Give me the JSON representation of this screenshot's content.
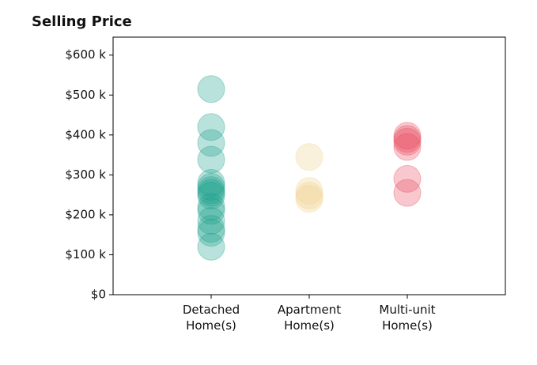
{
  "chart_data": {
    "type": "strip",
    "title": "Selling Price",
    "categories": [
      "Detached\nHome(s)",
      "Apartment\nHome(s)",
      "Multi-unit\nHome(s)"
    ],
    "colors": [
      "#1a9e8a",
      "#f0d08a",
      "#e8495c"
    ],
    "values": [
      [
        515000,
        420000,
        380000,
        338000,
        280000,
        270000,
        262000,
        255000,
        248000,
        220000,
        210000,
        185000,
        165000,
        155000,
        120000
      ],
      [
        345000,
        260000,
        248000,
        240000
      ],
      [
        398000,
        390000,
        383000,
        370000,
        290000,
        255000
      ]
    ],
    "xlim": [
      0,
      4
    ],
    "ylim": [
      0,
      645000
    ],
    "yticks": [
      {
        "value": 0,
        "label": "$0"
      },
      {
        "value": 100000,
        "label": "$100 k"
      },
      {
        "value": 200000,
        "label": "$200 k"
      },
      {
        "value": 300000,
        "label": "$300 k"
      },
      {
        "value": 400000,
        "label": "$400 k"
      },
      {
        "value": 500000,
        "label": "$500 k"
      },
      {
        "value": 600000,
        "label": "$600 k"
      }
    ]
  }
}
